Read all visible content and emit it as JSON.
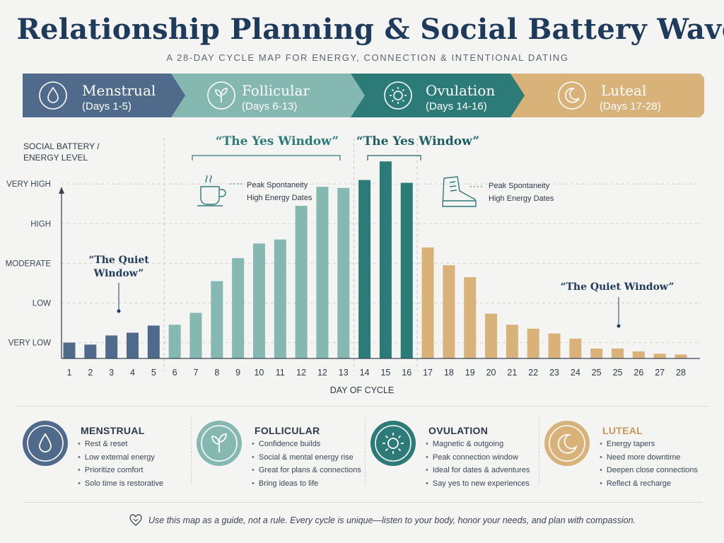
{
  "header": {
    "title": "Relationship Planning & Social Battery Wave",
    "subtitle": "A 28-DAY CYCLE MAP FOR ENERGY, CONNECTION & INTENTIONAL DATING"
  },
  "phases": [
    {
      "name": "Menstrual",
      "days": "(Days 1-5)",
      "color": "#4f6a8a",
      "icon": "drop-icon"
    },
    {
      "name": "Follicular",
      "days": "(Days 6-13)",
      "color": "#86b8b2",
      "icon": "leaf-icon"
    },
    {
      "name": "Ovulation",
      "days": "(Days 14-16)",
      "color": "#2c7b79",
      "icon": "sun-icon"
    },
    {
      "name": "Luteal",
      "days": "(Days 17-28)",
      "color": "#d9b27a",
      "icon": "moon-icon"
    }
  ],
  "chart_data": {
    "type": "bar",
    "ylabel": "SOCIAL BATTERY / ENERGY LEVEL",
    "xlabel": "DAY OF CYCLE",
    "y_ticks": [
      "VERY LOW",
      "LOW",
      "MODERATE",
      "HIGH",
      "VERY HIGH"
    ],
    "y_tick_values": [
      1,
      2,
      3,
      4,
      5
    ],
    "ylim": [
      0.6,
      5.45
    ],
    "grid": true,
    "tick_labels": [
      "1",
      "2",
      "3",
      "4",
      "5",
      "6",
      "7",
      "8",
      "9",
      "10",
      "11",
      "12",
      "12",
      "13",
      "14",
      "15",
      "16",
      "17",
      "18",
      "19",
      "20",
      "21",
      "22",
      "23",
      "24",
      "25",
      "25",
      "26",
      "27",
      "28"
    ],
    "values": [
      1.0,
      0.95,
      1.18,
      1.25,
      1.43,
      1.45,
      1.75,
      2.55,
      3.13,
      3.5,
      3.6,
      4.45,
      4.93,
      4.9,
      5.1,
      5.57,
      5.03,
      3.4,
      2.95,
      2.65,
      1.73,
      1.45,
      1.35,
      1.23,
      1.1,
      0.85,
      0.85,
      0.78,
      0.72,
      0.7
    ],
    "phase_index": [
      0,
      0,
      0,
      0,
      0,
      1,
      1,
      1,
      1,
      1,
      1,
      1,
      1,
      1,
      2,
      2,
      2,
      3,
      3,
      3,
      3,
      3,
      3,
      3,
      3,
      3,
      3,
      3,
      3,
      3
    ],
    "annotations": {
      "quiet_left": [
        "“The Quiet",
        "Window”"
      ],
      "yes_left": "“The Yes Window”",
      "yes_right": "“The Yes Window”",
      "quiet_right": "“The Quiet Window”",
      "peak_note_left": [
        "Peak Spontaneity",
        "High Energy Dates"
      ],
      "peak_note_right": [
        "Peak Spontaneity",
        "High Energy Dates"
      ]
    }
  },
  "cards": [
    {
      "title": "MENSTRUAL",
      "color": "#4f6a8a",
      "icon": "drop-icon",
      "items": [
        "Rest & reset",
        "Low external energy",
        "Prioritize comfort",
        "Solo time is restorative"
      ]
    },
    {
      "title": "FOLLICULAR",
      "color": "#86b8b2",
      "icon": "leaf-icon",
      "items": [
        "Confidence builds",
        "Social & mental energy rise",
        "Great for plans & connections",
        "Bring ideas to life"
      ]
    },
    {
      "title": "OVULATION",
      "color": "#2c7b79",
      "icon": "sun-icon",
      "items": [
        "Magnetic & outgoing",
        "Peak connection window",
        "Ideal for dates & adventures",
        "Say yes to new experiences"
      ]
    },
    {
      "title": "LUTEAL",
      "color": "#d9b27a",
      "icon": "moon-icon",
      "items": [
        "Energy tapers",
        "Need more downtime",
        "Deepen close connections",
        "Reflect & recharge"
      ]
    }
  ],
  "footer": {
    "icon": "heart-icon",
    "text": "Use this map as a guide, not a rule. Every cycle is unique—listen to your body, honor your needs, and plan with compassion."
  }
}
